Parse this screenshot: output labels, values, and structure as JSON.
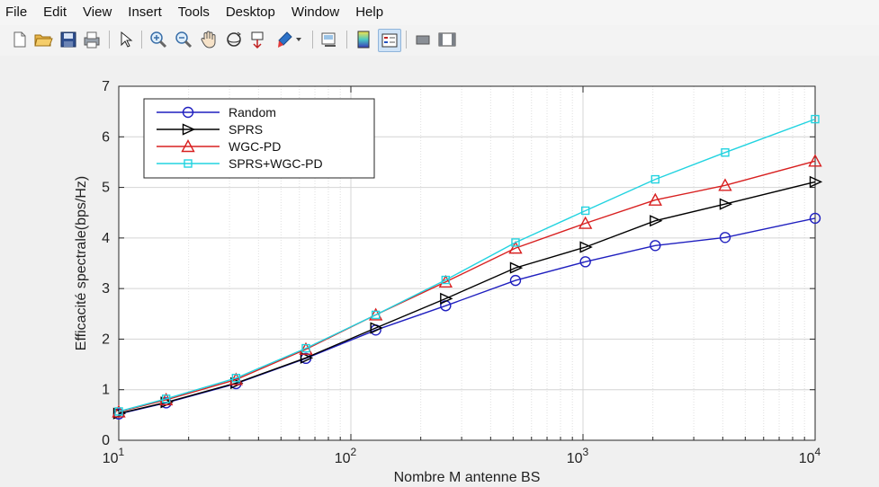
{
  "menu": [
    "File",
    "Edit",
    "View",
    "Insert",
    "Tools",
    "Desktop",
    "Window",
    "Help"
  ],
  "toolbar_icons": [
    "new-file-icon",
    "open-folder-icon",
    "save-icon",
    "print-icon",
    "pointer-icon",
    "zoom-in-icon",
    "zoom-out-icon",
    "pan-hand-icon",
    "rotate-3d-icon",
    "data-cursor-icon",
    "brush-icon",
    "dropdown-arrow-icon",
    "link-plot-icon",
    "colorbar-icon",
    "legend-icon",
    "hide-plot-tools-icon",
    "show-plot-tools-icon"
  ],
  "chart_data": {
    "type": "line",
    "xscale": "log",
    "xlabel": "Nombre M antenne BS",
    "ylabel": "Efficacité spectrale(bps/Hz)",
    "xlim": [
      10,
      10000
    ],
    "ylim": [
      0,
      7
    ],
    "yticks": [
      "0",
      "1",
      "2",
      "3",
      "4",
      "5",
      "6",
      "7"
    ],
    "xticks": [
      {
        "value": 10,
        "base": "10",
        "exp": "1"
      },
      {
        "value": 100,
        "base": "10",
        "exp": "2"
      },
      {
        "value": 1000,
        "base": "10",
        "exp": "3"
      },
      {
        "value": 10000,
        "base": "10",
        "exp": "4"
      }
    ],
    "grid": true,
    "legend_position": "top-left",
    "x": [
      10,
      16,
      32,
      64,
      128,
      256,
      512,
      1024,
      2048,
      4096,
      10000
    ],
    "series": [
      {
        "name": "Random",
        "color": "#1f1fbf",
        "marker": "circle",
        "values": [
          0.52,
          0.74,
          1.12,
          1.62,
          2.18,
          2.66,
          3.16,
          3.53,
          3.85,
          4.01,
          4.39
        ]
      },
      {
        "name": "SPRS",
        "color": "#000000",
        "marker": "triangle-right",
        "values": [
          0.53,
          0.75,
          1.13,
          1.63,
          2.22,
          2.8,
          3.41,
          3.82,
          4.34,
          4.67,
          5.11
        ]
      },
      {
        "name": "WGC-PD",
        "color": "#d82020",
        "marker": "triangle-up",
        "values": [
          0.56,
          0.8,
          1.2,
          1.8,
          2.48,
          3.13,
          3.8,
          4.29,
          4.75,
          5.04,
          5.52
        ]
      },
      {
        "name": "SPRS+WGC-PD",
        "color": "#22d3e0",
        "marker": "square",
        "values": [
          0.57,
          0.82,
          1.23,
          1.82,
          2.48,
          3.17,
          3.91,
          4.54,
          5.16,
          5.69,
          6.35
        ]
      }
    ]
  }
}
